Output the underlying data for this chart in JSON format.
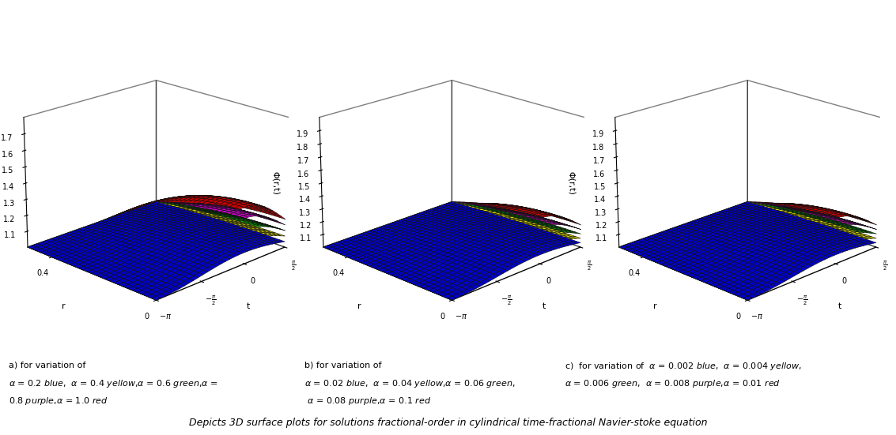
{
  "subplot_a": {
    "alphas": [
      1.0,
      0.8,
      0.6,
      0.4,
      0.2
    ],
    "colors": [
      "#cc0000",
      "#cc00cc",
      "#00bb00",
      "#dddd00",
      "#0000cc"
    ],
    "zlabel": "Φ(r,t)",
    "zlim": [
      1.0,
      1.8
    ],
    "zticks": [
      1.1,
      1.2,
      1.3,
      1.4,
      1.5,
      1.6,
      1.7
    ],
    "scale": 0.35
  },
  "subplot_b": {
    "alphas": [
      0.1,
      0.08,
      0.06,
      0.04,
      0.02
    ],
    "colors": [
      "#cc0000",
      "#cc00cc",
      "#00bb00",
      "#dddd00",
      "#0000cc"
    ],
    "zlabel": "Φ(r,t)",
    "zlim": [
      1.0,
      2.0
    ],
    "zticks": [
      1.1,
      1.2,
      1.3,
      1.4,
      1.5,
      1.6,
      1.7,
      1.8,
      1.9
    ],
    "scale": 3.5
  },
  "subplot_c": {
    "alphas": [
      0.01,
      0.008,
      0.006,
      0.004,
      0.002
    ],
    "colors": [
      "#cc0000",
      "#cc00cc",
      "#00bb00",
      "#dddd00",
      "#0000cc"
    ],
    "zlabel": "Φ(r,t)",
    "zlim": [
      1.0,
      2.0
    ],
    "zticks": [
      1.1,
      1.2,
      1.3,
      1.4,
      1.5,
      1.6,
      1.7,
      1.8,
      1.9
    ],
    "scale": 35.0
  },
  "r_min": 0.0,
  "r_max": 0.5,
  "t_min": -3.14159265,
  "t_max": 1.5707963,
  "nr": 30,
  "nt": 30,
  "elev": 20,
  "azim": 225,
  "caption_a_line1": "a) for variation of",
  "caption_a_line2": "α = 0.2 blue,  α = 0.4 yellow,α = 0.6 green,α =",
  "caption_a_line3": "0.8 purple,α = 1.0 red",
  "caption_b_line1": "b) for variation of",
  "caption_b_line2": "α = 0.02 blue,  α = 0.04 yellow,α = 0.06 green,",
  "caption_b_line3": " α = 0.08 purple,α = 0.1 red",
  "caption_c_line1": "c)  for variation of  α = 0.002 blue,  α = 0.004 yellow,",
  "caption_c_line2": "α = 0.006 green,  α = 0.008 purple,α = 0.01 red",
  "figcaption": "Depicts 3D surface plots for solutions fractional-order in cylindrical time-fractional Navier-stoke equation"
}
